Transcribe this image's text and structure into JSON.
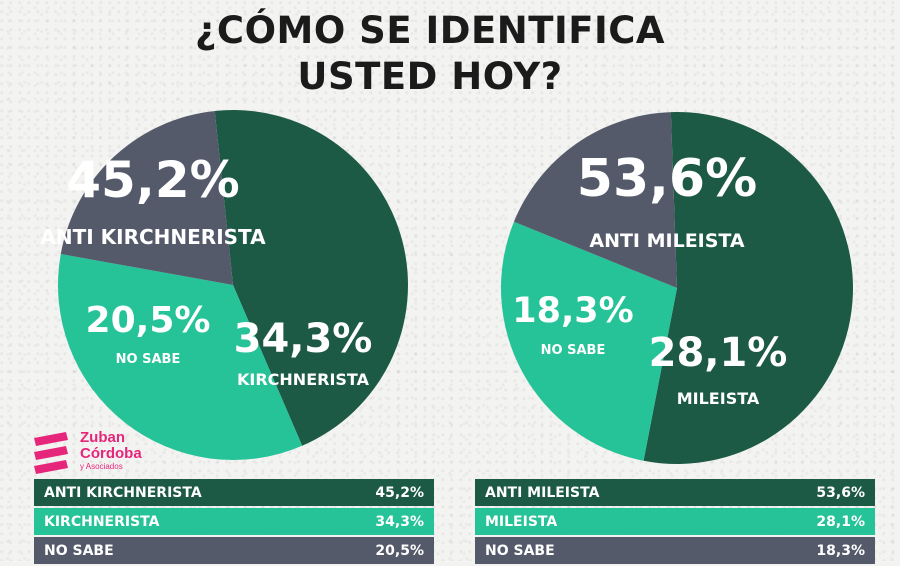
{
  "title": {
    "line1": "¿CÓMO SE IDENTIFICA",
    "line2": "USTED HOY?"
  },
  "colors": {
    "dark_green": "#1d5a45",
    "mint": "#26c398",
    "slate": "#555a6b",
    "brand_pink": "#e6267b"
  },
  "logo": {
    "line1": "Zuban",
    "line2": "Córdoba",
    "line3": "y Asociados"
  },
  "chart_data": [
    {
      "type": "pie",
      "slices": [
        {
          "label": "ANTI KIRCHNERISTA",
          "value": 45.2,
          "display": "45,2%",
          "color": "#1d5a45"
        },
        {
          "label": "KIRCHNERISTA",
          "value": 34.3,
          "display": "34,3%",
          "color": "#26c398"
        },
        {
          "label": "NO SABE",
          "value": 20.5,
          "display": "20,5%",
          "color": "#555a6b"
        }
      ]
    },
    {
      "type": "pie",
      "slices": [
        {
          "label": "ANTI MILEISTA",
          "value": 53.6,
          "display": "53,6%",
          "color": "#1d5a45"
        },
        {
          "label": "MILEISTA",
          "value": 28.1,
          "display": "28,1%",
          "color": "#26c398"
        },
        {
          "label": "NO SABE",
          "value": 18.3,
          "display": "18,3%",
          "color": "#555a6b"
        }
      ]
    }
  ]
}
